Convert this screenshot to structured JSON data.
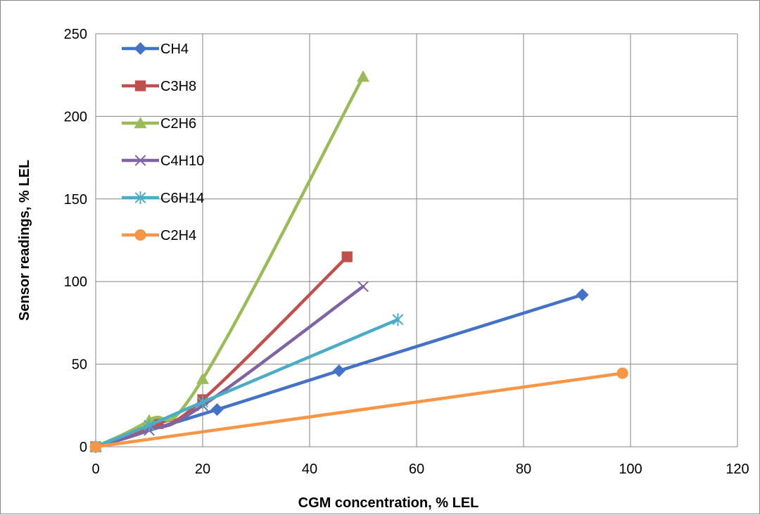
{
  "chart_data": {
    "type": "line",
    "xlabel": "CGM concentration, % LEL",
    "ylabel": "Sensor readings, % LEL",
    "xlim": [
      0,
      120
    ],
    "ylim": [
      0,
      250
    ],
    "xticks": [
      0,
      20,
      40,
      60,
      80,
      100,
      120
    ],
    "yticks": [
      0,
      50,
      100,
      150,
      200,
      250
    ],
    "grid": true,
    "legend_position": "top-left",
    "series": [
      {
        "name": "CH4",
        "color": "#4472C4",
        "marker": "diamond",
        "x": [
          0,
          22.7,
          45.5,
          91
        ],
        "y": [
          0,
          22.5,
          46,
          92
        ]
      },
      {
        "name": "C3H8",
        "color": "#C0504D",
        "marker": "square",
        "x": [
          0,
          11.7,
          20,
          47
        ],
        "y": [
          0,
          14,
          28.5,
          115
        ]
      },
      {
        "name": "C2H6",
        "color": "#9BBB59",
        "marker": "triangle",
        "x": [
          0,
          10,
          20,
          50
        ],
        "y": [
          0,
          16,
          41,
          224
        ]
      },
      {
        "name": "C4H10",
        "color": "#8064A2",
        "marker": "x",
        "x": [
          0,
          10,
          20,
          50
        ],
        "y": [
          0,
          10,
          25,
          97
        ]
      },
      {
        "name": "C6H14",
        "color": "#4BACC6",
        "marker": "star",
        "x": [
          0,
          10,
          20,
          56.5
        ],
        "y": [
          0,
          13,
          27,
          77
        ]
      },
      {
        "name": "C2H4",
        "color": "#F79646",
        "marker": "circle",
        "x": [
          0,
          98.5
        ],
        "y": [
          0,
          44.5
        ]
      }
    ]
  }
}
